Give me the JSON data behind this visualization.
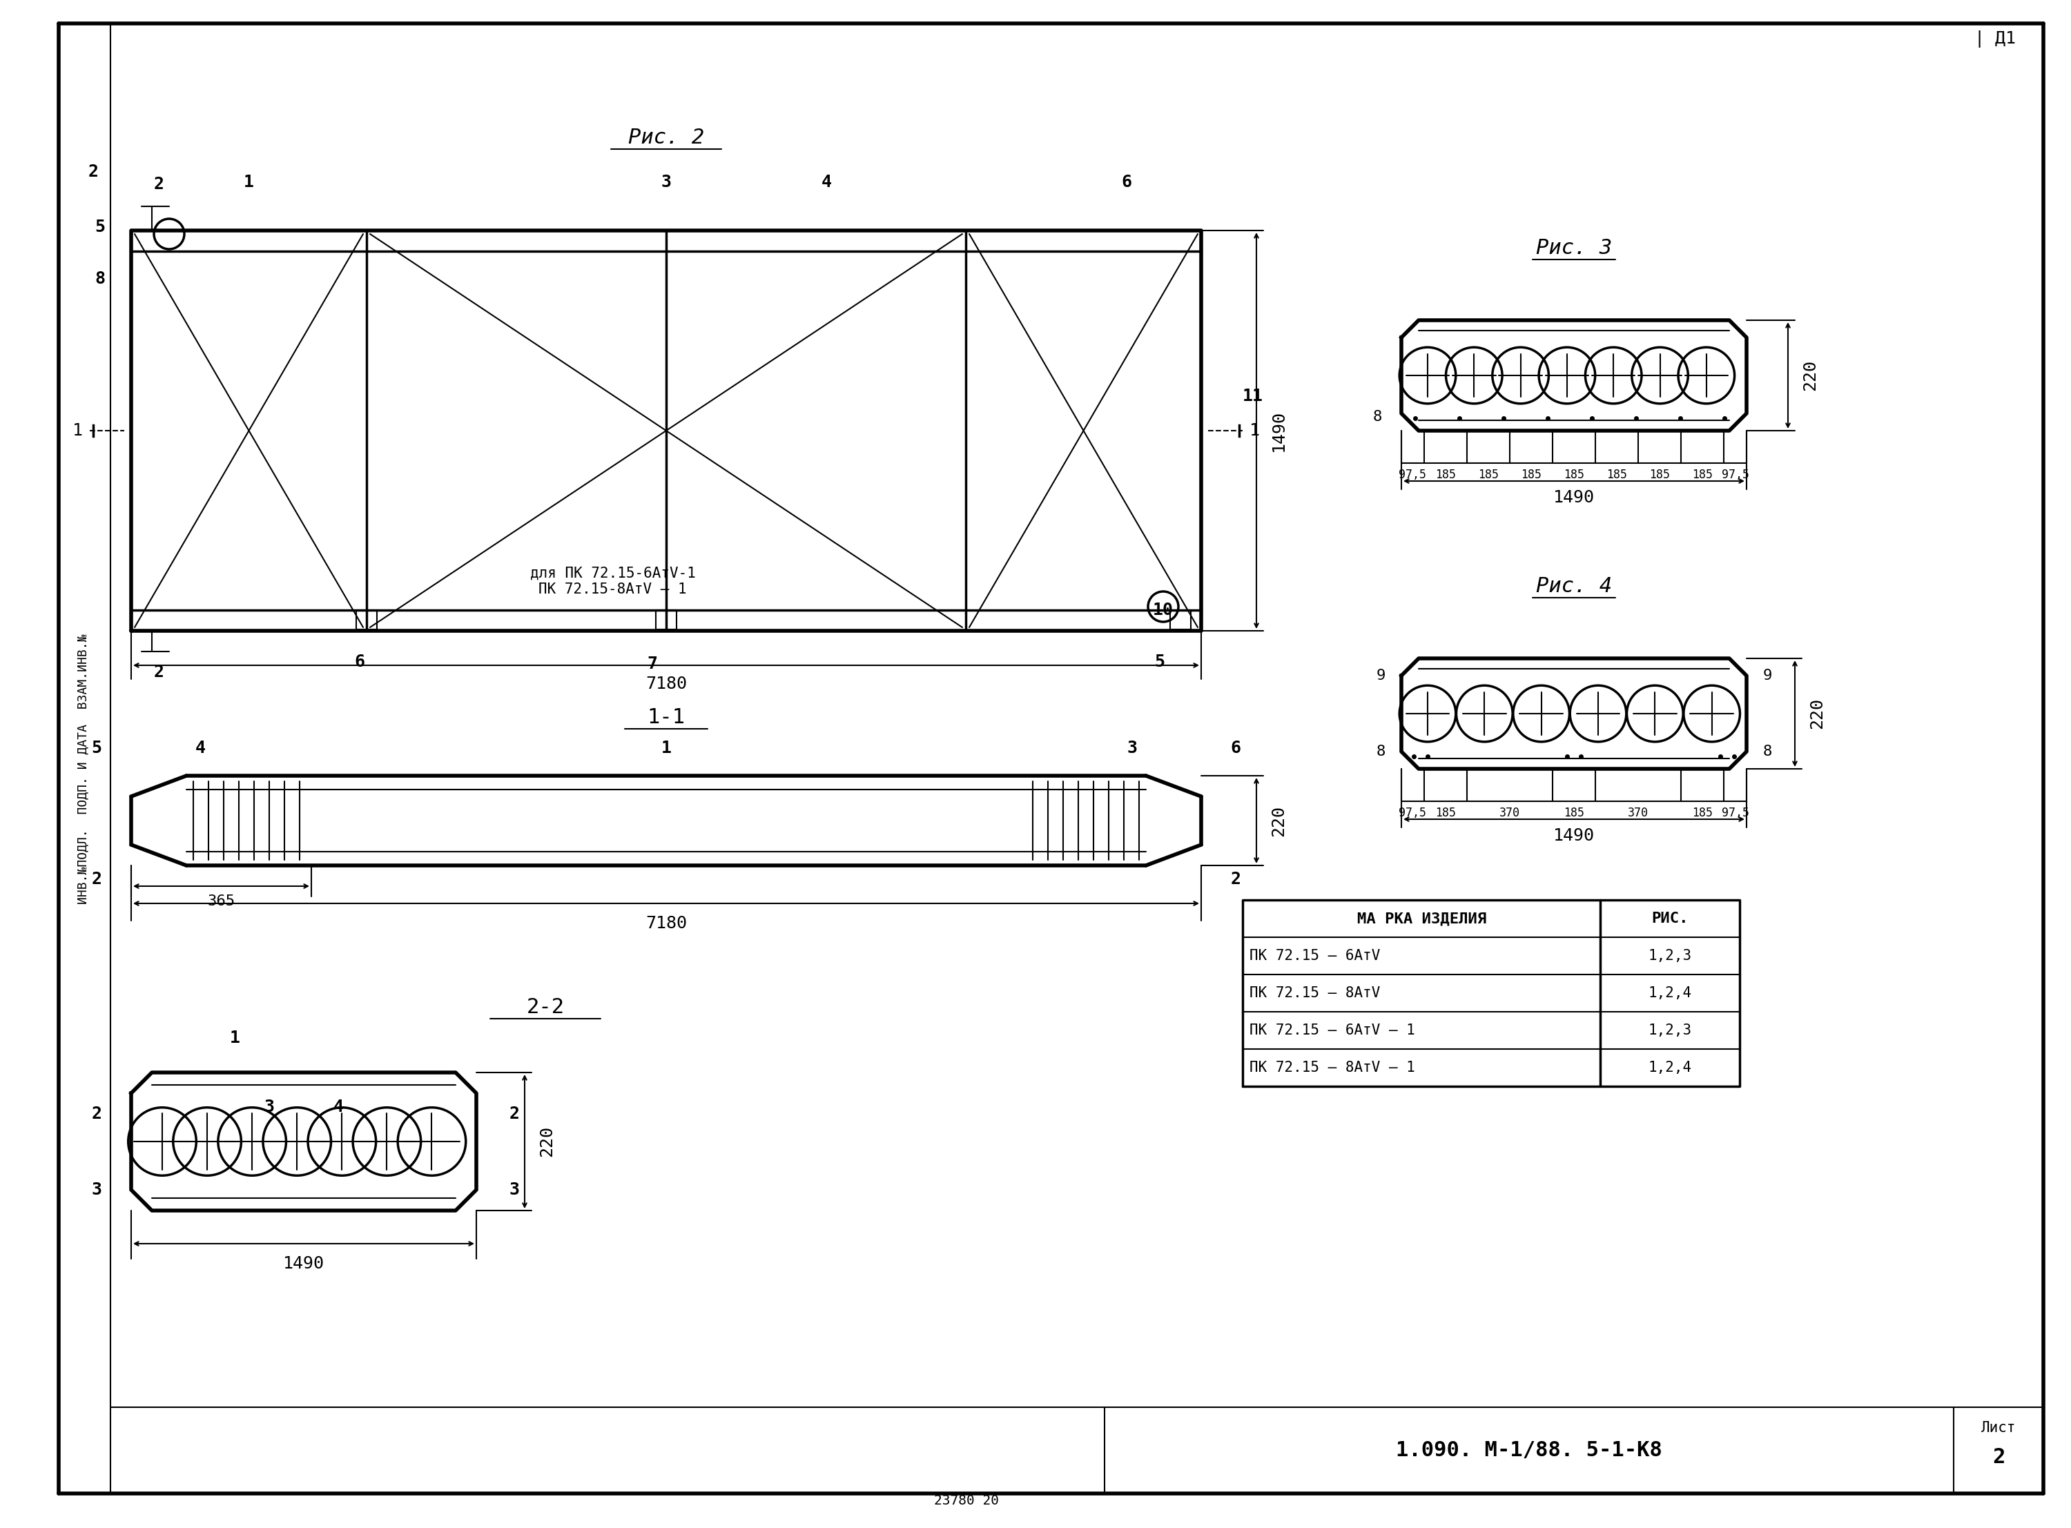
{
  "bg_color": "#ffffff",
  "line_color": "#000000",
  "title_block": {
    "doc_num": "1.090. М-1/88. 5-1-К8",
    "sheet": "2",
    "sheet_label": "Лист"
  },
  "table": {
    "header": [
      "МА РКА ИЗДЕЛИЯ",
      "РИС."
    ],
    "rows": [
      [
        "ПК 72.15 – 6АтV",
        "1,2,3"
      ],
      [
        "ПК 72.15 – 8АтV",
        "1,2,4"
      ],
      [
        "ПК 72.15 – 6АтV – 1",
        "1,2,3"
      ],
      [
        "ПК 72.15 – 8АтV – 1",
        "1,2,4"
      ]
    ]
  },
  "fig2_title": "Рис. 2",
  "fig3_title": "Рис. 3",
  "fig4_title": "Рис. 4",
  "sec11_title": "1-1",
  "sec22_title": "2-2",
  "note_text": "для ПК 72.15-6АтV-1\nПК 72.15-8АтV – 1",
  "print_num": "23780 20"
}
